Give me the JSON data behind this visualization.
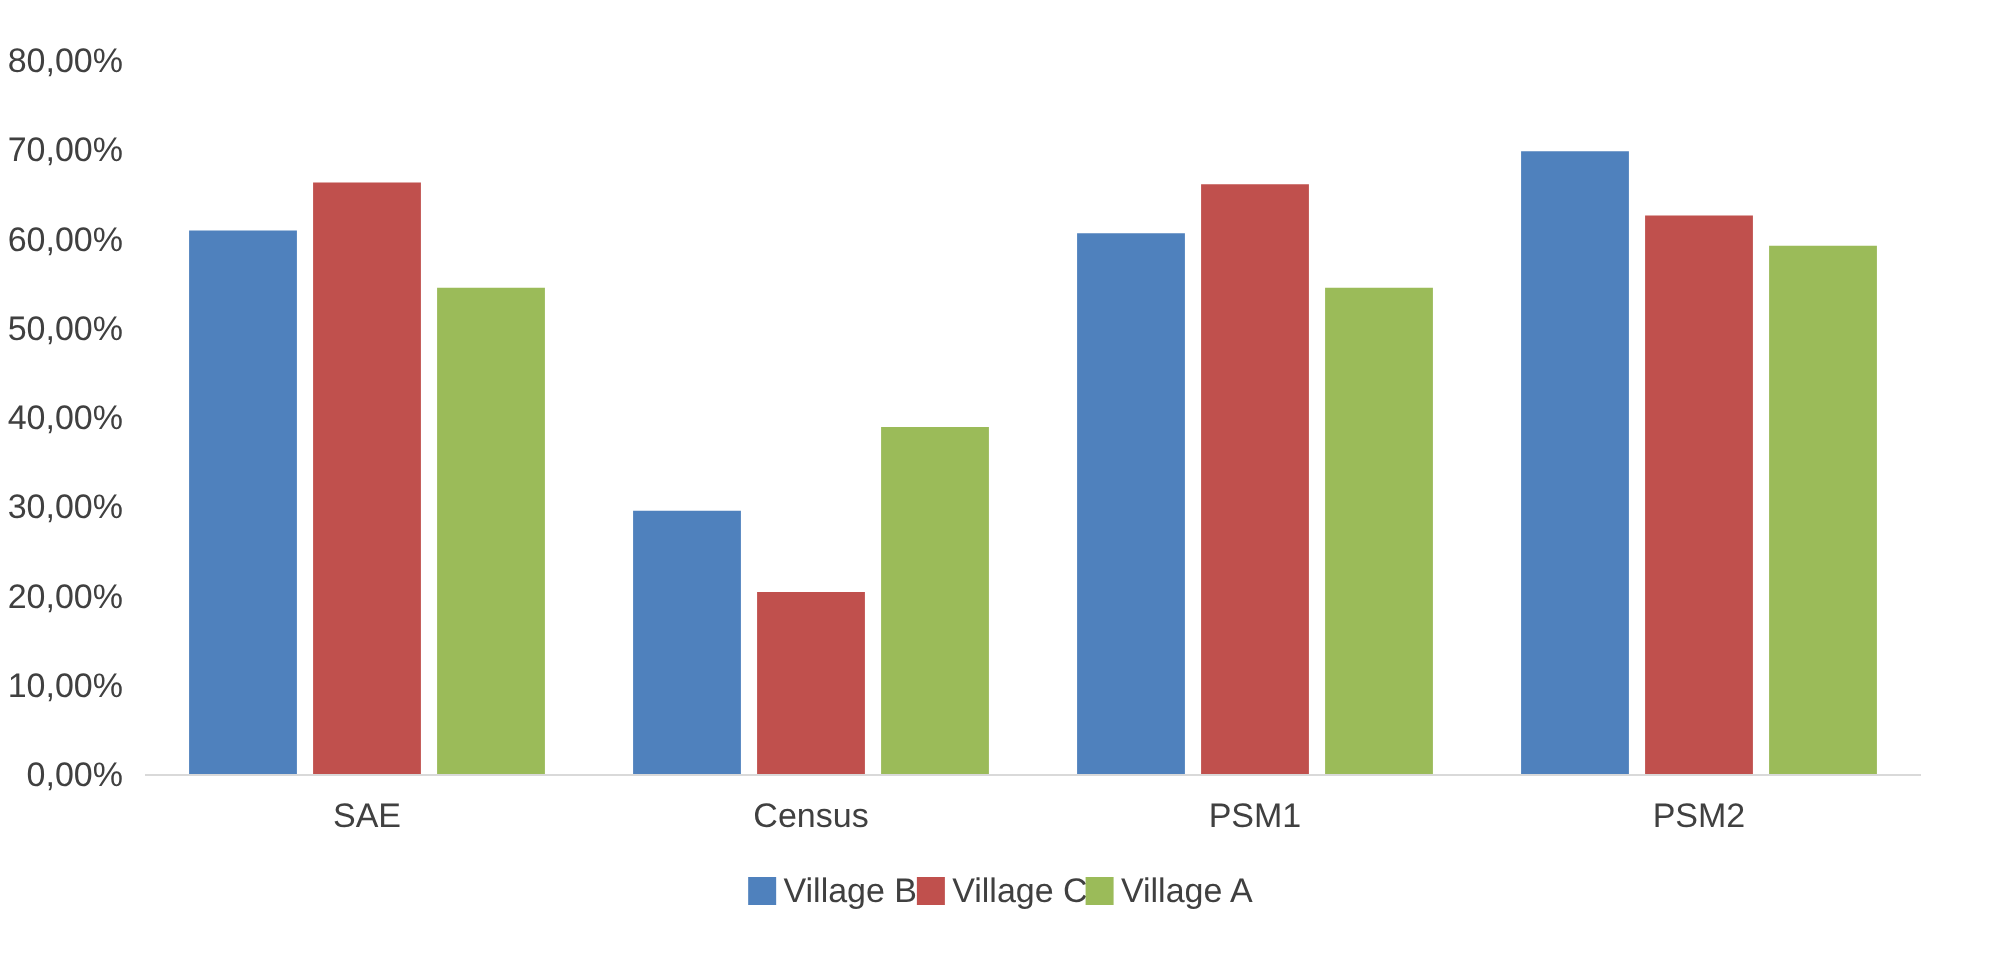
{
  "chart_data": {
    "type": "bar",
    "categories": [
      "SAE",
      "Census",
      "PSM1",
      "PSM2"
    ],
    "series": [
      {
        "name": "Village B",
        "color": "#4f81bd",
        "values": [
          61.0,
          29.6,
          60.7,
          69.9
        ]
      },
      {
        "name": "Village C",
        "color": "#c0504d",
        "values": [
          66.4,
          20.5,
          66.2,
          62.7
        ]
      },
      {
        "name": "Village A",
        "color": "#9bbb59",
        "values": [
          54.6,
          39.0,
          54.6,
          59.3
        ]
      }
    ],
    "ylim": [
      0,
      80
    ],
    "yticks": [
      {
        "value": 0,
        "label": "0,00%"
      },
      {
        "value": 10,
        "label": "10,00%"
      },
      {
        "value": 20,
        "label": "20,00%"
      },
      {
        "value": 30,
        "label": "30,00%"
      },
      {
        "value": 40,
        "label": "40,00%"
      },
      {
        "value": 50,
        "label": "50,00%"
      },
      {
        "value": 60,
        "label": "60,00%"
      },
      {
        "value": 70,
        "label": "70,00%"
      },
      {
        "value": 80,
        "label": "80,00%"
      }
    ],
    "grid": false,
    "legend": "bottom"
  }
}
